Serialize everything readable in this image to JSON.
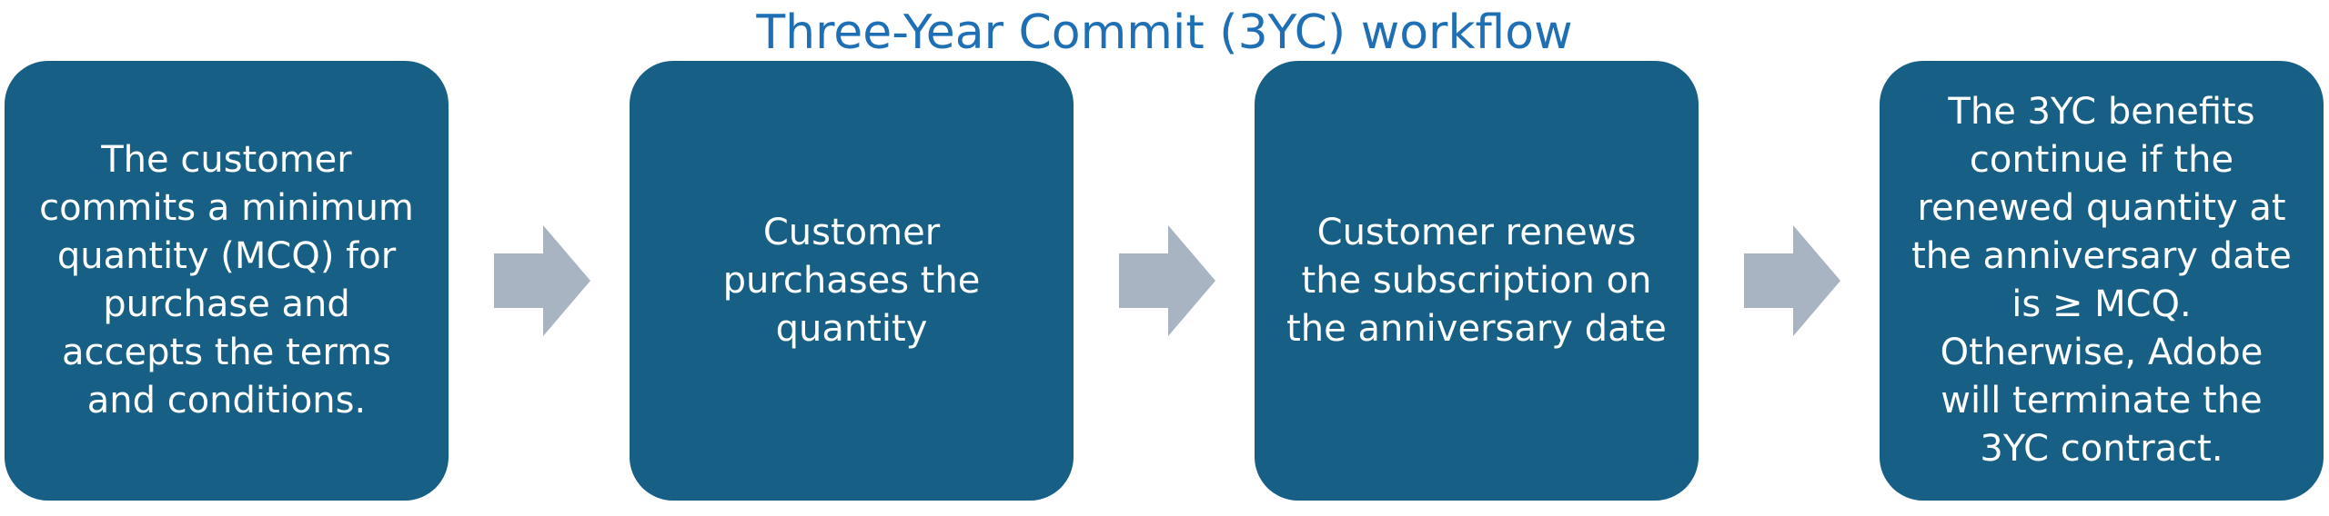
{
  "title": "Three-Year Commit (3YC) workflow",
  "steps": [
    {
      "text": "The customer\ncommits a minimum\nquantity (MCQ)  for\npurchase and\naccepts the terms\nand conditions."
    },
    {
      "text": "Customer\npurchases the\nquantity"
    },
    {
      "text": "Customer renews\nthe subscription on\nthe anniversary date"
    },
    {
      "text": "The 3YC benefits\ncontinue if the\nrenewed quantity at\nthe anniversary date\nis ≥ MCQ.\nOtherwise, Adobe\nwill terminate the\n3YC contract."
    }
  ],
  "colors": {
    "title": "#1f6fb5",
    "box_fill": "#175f84",
    "box_text": "#ffffff",
    "arrow": "#a9b4c2"
  },
  "arrow_icon": "right-arrow-icon"
}
